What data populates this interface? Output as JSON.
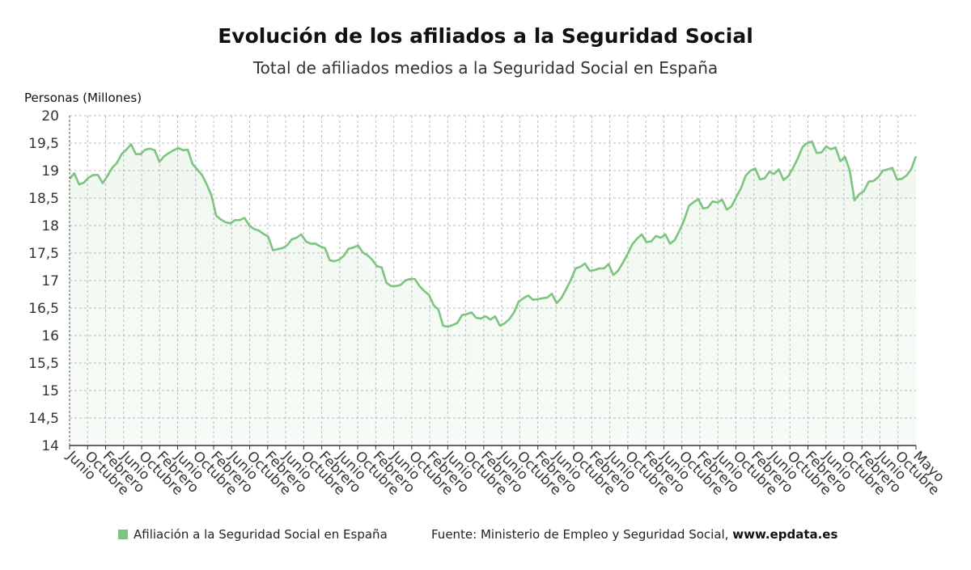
{
  "title": "Evolución de los afiliados a la Seguridad Social",
  "subtitle": "Total de afiliados medios a la Seguridad Social en España",
  "legend": {
    "label": "Afiliación a la Seguridad Social en España",
    "color": "#7cc47f"
  },
  "source": {
    "prefix": "Fuente: Ministerio de Empleo y Seguridad Social,",
    "site": "www.epdata.es"
  },
  "chart_data": {
    "type": "area",
    "ylabel": "Personas (Millones)",
    "ylim": [
      14,
      20
    ],
    "yticks": [
      "14",
      "14,5",
      "15",
      "15,5",
      "16",
      "16,5",
      "17",
      "17,5",
      "18",
      "18,5",
      "19",
      "19,5",
      "20"
    ],
    "ytick_values": [
      14,
      14.5,
      15,
      15.5,
      16,
      16.5,
      17,
      17.5,
      18,
      18.5,
      19,
      19.5,
      20
    ],
    "xticks": [
      "Junio",
      "Octubre",
      "Febrero",
      "Junio",
      "Octubre",
      "Febrero",
      "Junio",
      "Octubre",
      "Febrero",
      "Junio",
      "Octubre",
      "Febrero",
      "Junio",
      "Octubre",
      "Febrero",
      "Junio",
      "Octubre",
      "Febrero",
      "Junio",
      "Octubre",
      "Febrero",
      "Junio",
      "Octubre",
      "Febrero",
      "Junio",
      "Octubre",
      "Febrero",
      "Junio",
      "Octubre",
      "Febrero",
      "Junio",
      "Octubre",
      "Febrero",
      "Junio",
      "Octubre",
      "Febrero",
      "Junio",
      "Octubre",
      "Febrero",
      "Junio",
      "Octubre",
      "Febrero",
      "Junio",
      "Octubre",
      "Febrero",
      "Junio",
      "Octubre",
      "Mayo"
    ],
    "grid": true,
    "series": [
      {
        "name": "Afiliación a la Seguridad Social en España",
        "color": "#7cc47f",
        "values": [
          18.85,
          18.95,
          18.75,
          18.78,
          18.87,
          18.92,
          18.92,
          18.77,
          18.9,
          19.05,
          19.14,
          19.3,
          19.38,
          19.48,
          19.3,
          19.3,
          19.38,
          19.4,
          19.37,
          19.16,
          19.26,
          19.32,
          19.37,
          19.41,
          19.37,
          19.38,
          19.12,
          19.02,
          18.92,
          18.75,
          18.55,
          18.18,
          18.11,
          18.06,
          18.04,
          18.1,
          18.1,
          18.14,
          18.0,
          17.94,
          17.91,
          17.85,
          17.8,
          17.55,
          17.57,
          17.59,
          17.64,
          17.75,
          17.78,
          17.84,
          17.71,
          17.67,
          17.67,
          17.62,
          17.59,
          17.37,
          17.35,
          17.38,
          17.45,
          17.58,
          17.6,
          17.64,
          17.51,
          17.46,
          17.38,
          17.26,
          17.24,
          16.96,
          16.9,
          16.9,
          16.92,
          17.0,
          17.03,
          17.03,
          16.9,
          16.81,
          16.74,
          16.55,
          16.47,
          16.18,
          16.16,
          16.19,
          16.23,
          16.37,
          16.39,
          16.42,
          16.32,
          16.31,
          16.35,
          16.29,
          16.35,
          16.18,
          16.22,
          16.3,
          16.42,
          16.62,
          16.68,
          16.73,
          16.65,
          16.66,
          16.68,
          16.69,
          16.76,
          16.59,
          16.68,
          16.84,
          17.01,
          17.22,
          17.25,
          17.31,
          17.18,
          17.19,
          17.22,
          17.22,
          17.3,
          17.1,
          17.18,
          17.32,
          17.48,
          17.66,
          17.76,
          17.84,
          17.7,
          17.71,
          17.81,
          17.78,
          17.84,
          17.67,
          17.74,
          17.91,
          18.11,
          18.36,
          18.43,
          18.48,
          18.31,
          18.33,
          18.44,
          18.42,
          18.47,
          18.29,
          18.35,
          18.52,
          18.68,
          18.91,
          19.0,
          19.04,
          18.84,
          18.86,
          18.98,
          18.94,
          19.02,
          18.83,
          18.9,
          19.05,
          19.22,
          19.43,
          19.5,
          19.53,
          19.32,
          19.33,
          19.44,
          19.39,
          19.42,
          19.17,
          19.25,
          19.0,
          18.46,
          18.57,
          18.63,
          18.8,
          18.81,
          18.88,
          19.0,
          19.02,
          19.05,
          18.84,
          18.85,
          18.91,
          19.03,
          19.26
        ]
      }
    ]
  }
}
